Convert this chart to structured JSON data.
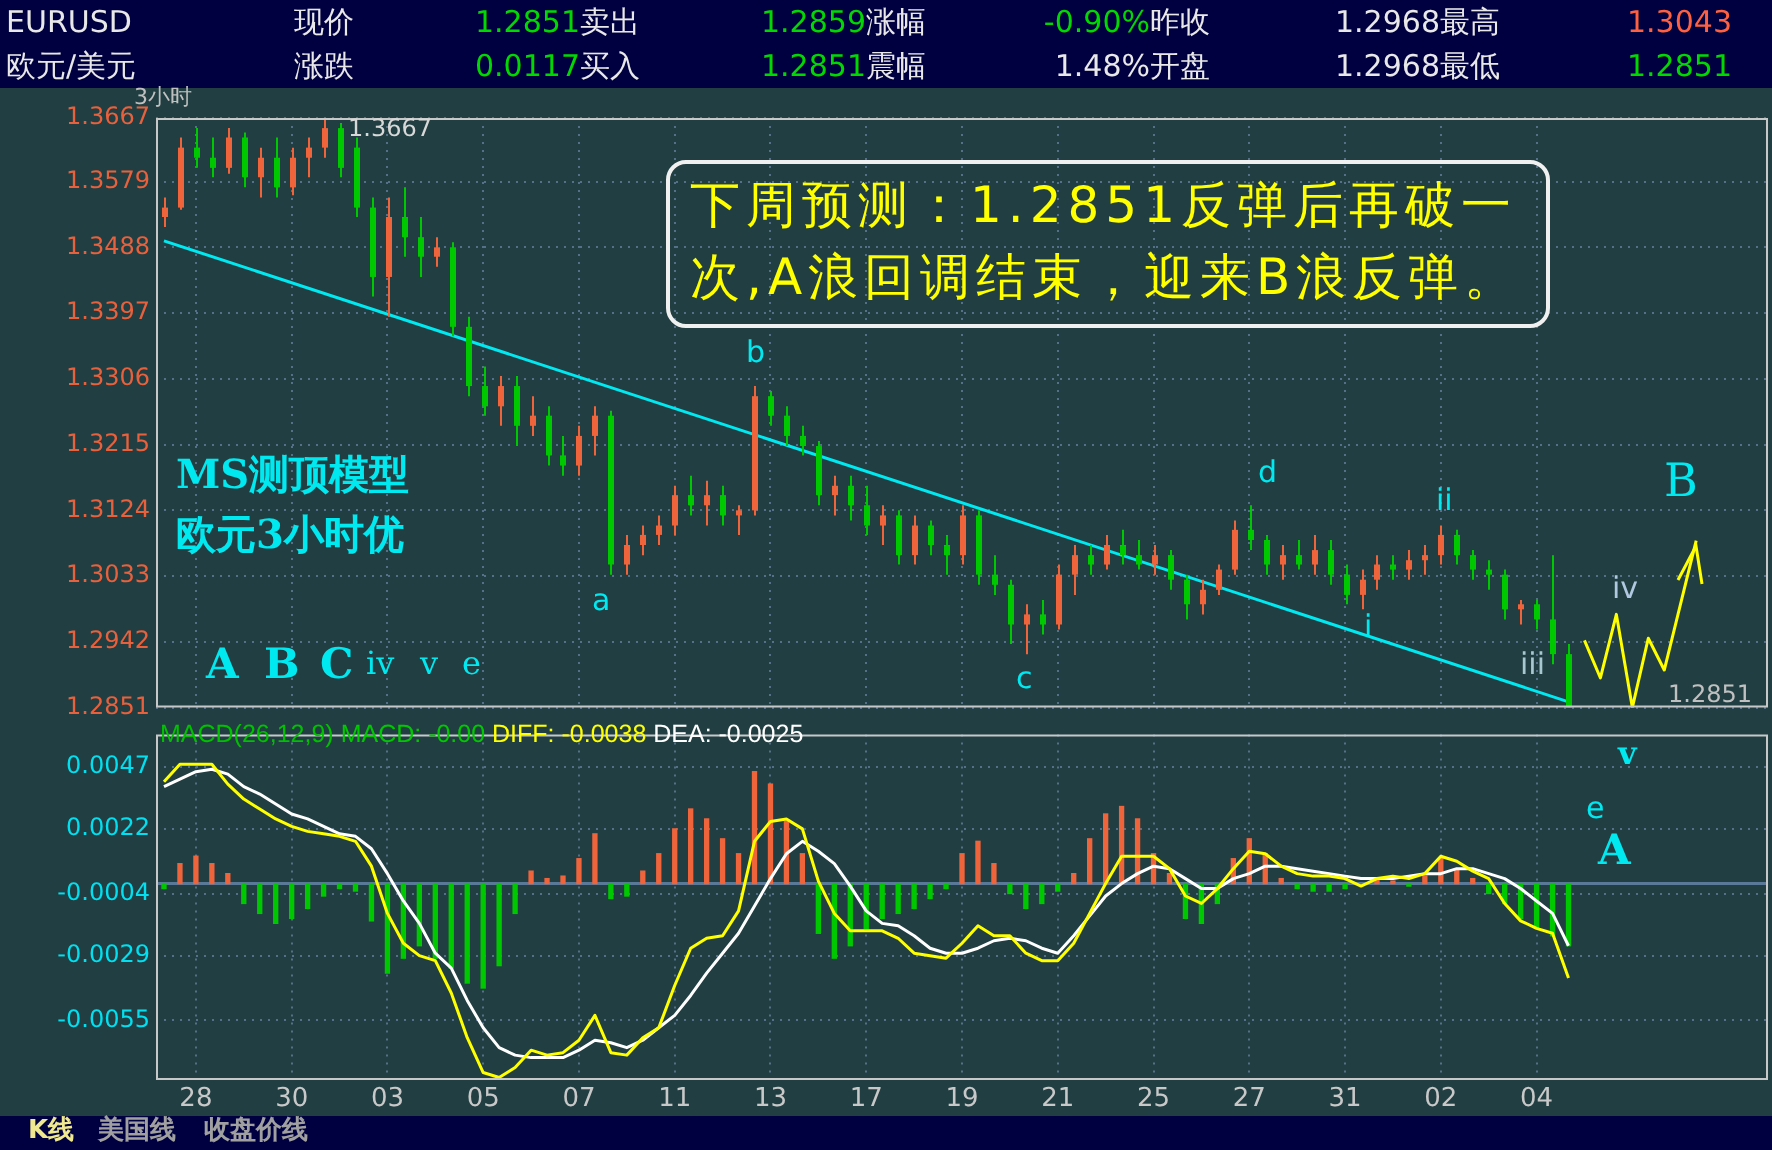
{
  "chart_data": [
    {
      "type": "other",
      "annotations": [
        "EURUSD",
        "现价",
        "1.2851",
        "卖出",
        "1.2859",
        "涨幅",
        "-0.90%",
        "昨收",
        "1.2968",
        "最高",
        "1.3043",
        "欧元/美元",
        "涨跌",
        "0.0117",
        "买入",
        "1.2851",
        "震幅",
        "1.48%",
        "开盘",
        "1.2968",
        "最低",
        "1.2851",
        "K线",
        "美国线",
        "收盘价线"
      ]
    },
    {
      "type": "candlestick",
      "categories": [
        null,
        null,
        "28",
        null,
        null,
        null,
        null,
        null,
        "30",
        null,
        null,
        null,
        null,
        null,
        "03",
        null,
        null,
        null,
        null,
        null,
        "05",
        null,
        null,
        null,
        null,
        null,
        "07",
        null,
        null,
        null,
        null,
        null,
        "11",
        null,
        null,
        null,
        null,
        null,
        "13",
        null,
        null,
        null,
        null,
        null,
        "17",
        null,
        null,
        null,
        null,
        null,
        "19",
        null,
        null,
        null,
        null,
        null,
        "21",
        null,
        null,
        null,
        null,
        null,
        "25",
        null,
        null,
        null,
        null,
        null,
        "27",
        null,
        null,
        null,
        null,
        null,
        "31",
        null,
        null,
        null,
        null,
        null,
        "02",
        null,
        null,
        null,
        null,
        null,
        "04",
        null,
        null,
        null,
        null,
        null,
        null,
        null,
        null,
        null,
        null,
        null,
        null,
        null,
        null
      ],
      "ohlc": [
        [
          1.353,
          1.3557,
          1.3516,
          1.3543
        ],
        [
          1.3543,
          1.364,
          1.354,
          1.3626
        ],
        [
          1.3626,
          1.3653,
          1.3598,
          1.3612
        ],
        [
          1.3612,
          1.364,
          1.3585,
          1.3598
        ],
        [
          1.3598,
          1.3653,
          1.359,
          1.364
        ],
        [
          1.364,
          1.3647,
          1.3571,
          1.3585
        ],
        [
          1.3585,
          1.3626,
          1.3557,
          1.3612
        ],
        [
          1.3612,
          1.364,
          1.3557,
          1.3571
        ],
        [
          1.3571,
          1.3626,
          1.356,
          1.3612
        ],
        [
          1.3612,
          1.364,
          1.3585,
          1.3626
        ],
        [
          1.3626,
          1.3667,
          1.3612,
          1.3653
        ],
        [
          1.3653,
          1.366,
          1.3585,
          1.3598
        ],
        [
          1.3626,
          1.364,
          1.353,
          1.3543
        ],
        [
          1.3543,
          1.3557,
          1.342,
          1.3447
        ],
        [
          1.3447,
          1.3557,
          1.3392,
          1.353
        ],
        [
          1.353,
          1.3571,
          1.3475,
          1.3502
        ],
        [
          1.3502,
          1.353,
          1.3447,
          1.3475
        ],
        [
          1.3475,
          1.3502,
          1.3461,
          1.3488
        ],
        [
          1.3488,
          1.3495,
          1.3365,
          1.3378
        ],
        [
          1.3378,
          1.3392,
          1.3282,
          1.3296
        ],
        [
          1.3296,
          1.3323,
          1.3255,
          1.3268
        ],
        [
          1.3268,
          1.331,
          1.3241,
          1.3296
        ],
        [
          1.3296,
          1.331,
          1.3213,
          1.3241
        ],
        [
          1.3241,
          1.3282,
          1.3227,
          1.3255
        ],
        [
          1.3255,
          1.3268,
          1.3186,
          1.32
        ],
        [
          1.32,
          1.3227,
          1.3172,
          1.3186
        ],
        [
          1.3186,
          1.3241,
          1.3172,
          1.3227
        ],
        [
          1.3227,
          1.3268,
          1.32,
          1.3255
        ],
        [
          1.3255,
          1.3262,
          1.3035,
          1.3049
        ],
        [
          1.3049,
          1.309,
          1.3035,
          1.3076
        ],
        [
          1.3076,
          1.3103,
          1.3062,
          1.309
        ],
        [
          1.309,
          1.3117,
          1.3076,
          1.3103
        ],
        [
          1.3103,
          1.3158,
          1.309,
          1.3145
        ],
        [
          1.3145,
          1.3172,
          1.3117,
          1.3131
        ],
        [
          1.3131,
          1.3165,
          1.3103,
          1.3145
        ],
        [
          1.3145,
          1.3158,
          1.3103,
          1.3117
        ],
        [
          1.3117,
          1.3131,
          1.309,
          1.3124
        ],
        [
          1.3124,
          1.3296,
          1.3117,
          1.3282
        ],
        [
          1.3282,
          1.3289,
          1.3241,
          1.3255
        ],
        [
          1.3255,
          1.3268,
          1.3213,
          1.3227
        ],
        [
          1.3227,
          1.3241,
          1.32,
          1.3213
        ],
        [
          1.3213,
          1.322,
          1.3131,
          1.3145
        ],
        [
          1.3145,
          1.3172,
          1.3117,
          1.3158
        ],
        [
          1.3158,
          1.3172,
          1.311,
          1.3131
        ],
        [
          1.3131,
          1.3158,
          1.309,
          1.3103
        ],
        [
          1.3103,
          1.3131,
          1.3076,
          1.3117
        ],
        [
          1.3117,
          1.3124,
          1.3049,
          1.3062
        ],
        [
          1.3062,
          1.3117,
          1.3049,
          1.3103
        ],
        [
          1.3103,
          1.311,
          1.3062,
          1.3076
        ],
        [
          1.3076,
          1.309,
          1.3035,
          1.3062
        ],
        [
          1.3062,
          1.3131,
          1.3049,
          1.3117
        ],
        [
          1.3117,
          1.3124,
          1.3021,
          1.3035
        ],
        [
          1.3035,
          1.3062,
          1.3007,
          1.3021
        ],
        [
          1.3021,
          1.3028,
          1.2939,
          1.2966
        ],
        [
          1.2966,
          1.2994,
          1.2925,
          1.298
        ],
        [
          1.298,
          1.3,
          1.2952,
          1.2966
        ],
        [
          1.2966,
          1.3049,
          1.2959,
          1.3035
        ],
        [
          1.3035,
          1.3076,
          1.3007,
          1.3062
        ],
        [
          1.3062,
          1.3076,
          1.3035,
          1.3049
        ],
        [
          1.3049,
          1.309,
          1.3042,
          1.3076
        ],
        [
          1.3076,
          1.3097,
          1.3049,
          1.3062
        ],
        [
          1.3062,
          1.3083,
          1.3042,
          1.3049
        ],
        [
          1.3049,
          1.3076,
          1.3035,
          1.3062
        ],
        [
          1.3062,
          1.3069,
          1.3014,
          1.3028
        ],
        [
          1.3028,
          1.3035,
          1.2973,
          1.2994
        ],
        [
          1.2994,
          1.3028,
          1.298,
          1.3014
        ],
        [
          1.3014,
          1.3049,
          1.3007,
          1.3042
        ],
        [
          1.3042,
          1.311,
          1.3035,
          1.3097
        ],
        [
          1.3097,
          1.3131,
          1.3069,
          1.3083
        ],
        [
          1.3083,
          1.309,
          1.3035,
          1.3049
        ],
        [
          1.3049,
          1.3076,
          1.3028,
          1.3062
        ],
        [
          1.3062,
          1.3083,
          1.3042,
          1.3049
        ],
        [
          1.3049,
          1.309,
          1.3035,
          1.3069
        ],
        [
          1.3069,
          1.3083,
          1.3021,
          1.3035
        ],
        [
          1.3035,
          1.3049,
          1.2994,
          1.3007
        ],
        [
          1.3007,
          1.3042,
          1.2987,
          1.3028
        ],
        [
          1.3028,
          1.3062,
          1.3014,
          1.3049
        ],
        [
          1.3049,
          1.3062,
          1.3028,
          1.3042
        ],
        [
          1.3042,
          1.3069,
          1.3028,
          1.3055
        ],
        [
          1.3055,
          1.3076,
          1.3035,
          1.3062
        ],
        [
          1.3062,
          1.3103,
          1.3049,
          1.309
        ],
        [
          1.309,
          1.3097,
          1.3049,
          1.3062
        ],
        [
          1.3062,
          1.3069,
          1.3028,
          1.3042
        ],
        [
          1.3042,
          1.3055,
          1.3014,
          1.3035
        ],
        [
          1.3035,
          1.3042,
          1.2973,
          1.2987
        ],
        [
          1.2987,
          1.3,
          1.2966,
          1.2994
        ],
        [
          1.2994,
          1.3,
          1.2959,
          1.2973
        ],
        [
          1.2973,
          1.3062,
          1.2911,
          1.2925
        ],
        [
          1.2925,
          1.2939,
          1.2851,
          1.2851
        ],
        null,
        null,
        null,
        null,
        null,
        null,
        null,
        null,
        null,
        null,
        null,
        null
      ],
      "colors": [
        "#f0643c",
        "#f0643c",
        "#00c800",
        "#00c800",
        "#f0643c",
        "#00c800",
        "#f0643c",
        "#00c800",
        "#f0643c",
        "#f0643c",
        "#f0643c",
        "#00c800",
        "#00c800",
        "#00c800",
        "#f0643c",
        "#00c800",
        "#00c800",
        "#f0643c",
        "#00c800",
        "#00c800",
        "#00c800",
        "#f0643c",
        "#00c800",
        "#f0643c",
        "#00c800",
        "#00c800",
        "#f0643c",
        "#f0643c",
        "#00c800",
        "#f0643c",
        "#f0643c",
        "#f0643c",
        "#f0643c",
        "#00c800",
        "#f0643c",
        "#00c800",
        "#f0643c",
        "#f0643c",
        "#00c800",
        "#00c800",
        "#00c800",
        "#00c800",
        "#f0643c",
        "#00c800",
        "#00c800",
        "#f0643c",
        "#00c800",
        "#f0643c",
        "#00c800",
        "#00c800",
        "#f0643c",
        "#00c800",
        "#00c800",
        "#00c800",
        "#f0643c",
        "#00c800",
        "#f0643c",
        "#f0643c",
        "#00c800",
        "#f0643c",
        "#00c800",
        "#00c800",
        "#f0643c",
        "#00c800",
        "#00c800",
        "#f0643c",
        "#f0643c",
        "#f0643c",
        "#00c800",
        "#00c800",
        "#f0643c",
        "#00c800",
        "#f0643c",
        "#00c800",
        "#00c800",
        "#f0643c",
        "#f0643c",
        "#00c800",
        "#f0643c",
        "#f0643c",
        "#f0643c",
        "#00c800",
        "#00c800",
        "#00c800",
        "#00c800",
        "#f0643c",
        "#00c800",
        "#00c800",
        "#00c800",
        null,
        null,
        null,
        null,
        null,
        null,
        null,
        null,
        null,
        null,
        null,
        null
      ],
      "series": [
        {
          "type": "line",
          "color": "#00e8f0",
          "values": [
            1.3497,
            null,
            null,
            null,
            null,
            null,
            null,
            null,
            null,
            null,
            null,
            null,
            null,
            null,
            null,
            null,
            null,
            null,
            null,
            null,
            null,
            null,
            null,
            null,
            null,
            null,
            null,
            null,
            null,
            null,
            null,
            null,
            null,
            null,
            null,
            null,
            null,
            null,
            null,
            null,
            null,
            null,
            null,
            null,
            null,
            null,
            null,
            null,
            null,
            null,
            null,
            null,
            null,
            null,
            null,
            null,
            null,
            null,
            null,
            null,
            null,
            null,
            null,
            null,
            null,
            null,
            null,
            null,
            null,
            null,
            null,
            null,
            null,
            null,
            null,
            null,
            null,
            null,
            null,
            null,
            null,
            null,
            null,
            null,
            null,
            null,
            null,
            null,
            1.2859,
            null,
            null,
            null,
            null,
            null,
            null,
            null,
            null,
            null,
            null,
            null,
            null
          ]
        },
        {
          "type": "line",
          "color": "#ffff00",
          "values": [
            null,
            null,
            null,
            null,
            null,
            null,
            null,
            null,
            null,
            null,
            null,
            null,
            null,
            null,
            null,
            null,
            null,
            null,
            null,
            null,
            null,
            null,
            null,
            null,
            null,
            null,
            null,
            null,
            null,
            null,
            null,
            null,
            null,
            null,
            null,
            null,
            null,
            null,
            null,
            null,
            null,
            null,
            null,
            null,
            null,
            null,
            null,
            null,
            null,
            null,
            null,
            null,
            null,
            null,
            null,
            null,
            null,
            null,
            null,
            null,
            null,
            null,
            null,
            null,
            null,
            null,
            null,
            null,
            null,
            null,
            null,
            null,
            null,
            null,
            null,
            null,
            null,
            null,
            null,
            null,
            null,
            null,
            null,
            null,
            null,
            null,
            null,
            null,
            null,
            1.2944,
            1.2892,
            1.298,
            1.2851,
            1.2947,
            1.2903,
            null,
            1.3082,
            null,
            null,
            null,
            null
          ]
        }
      ],
      "ylim": [
        1.2851,
        1.3667
      ],
      "yticks": [
        1.2851,
        1.2942,
        1.3033,
        1.3124,
        1.3215,
        1.3306,
        1.3397,
        1.3488,
        1.3579,
        1.3667
      ],
      "grid": true,
      "tick_labels": "y",
      "annotations": [
        "3小时",
        "1.3667",
        "下周预测：1.2851反弹后再破一次,A浪回调结束，迎来B浪反弹。",
        "MS测顶模型欧元3小时优",
        "A",
        "B",
        "C",
        "iv",
        "v",
        "e",
        "a",
        "b",
        "c",
        "d",
        "i",
        "ii",
        "iii",
        "iv",
        "v",
        "e",
        "A",
        "B",
        "1.2851"
      ]
    },
    {
      "type": "bar",
      "title": "MACD(26,12,9)",
      "categories": [
        null,
        null,
        "28",
        null,
        null,
        null,
        null,
        null,
        "30",
        null,
        null,
        null,
        null,
        null,
        "03",
        null,
        null,
        null,
        null,
        null,
        "05",
        null,
        null,
        null,
        null,
        null,
        "07",
        null,
        null,
        null,
        null,
        null,
        "11",
        null,
        null,
        null,
        null,
        null,
        "13",
        null,
        null,
        null,
        null,
        null,
        "17",
        null,
        null,
        null,
        null,
        null,
        "19",
        null,
        null,
        null,
        null,
        null,
        "21",
        null,
        null,
        null,
        null,
        null,
        "25",
        null,
        null,
        null,
        null,
        null,
        "27",
        null,
        null,
        null,
        null,
        null,
        "31",
        null,
        null,
        null,
        null,
        null,
        "02",
        null,
        null,
        null,
        null,
        null,
        "04",
        null,
        null,
        null,
        null,
        null,
        null,
        null,
        null,
        null,
        null,
        null,
        null,
        null,
        null
      ],
      "series": [
        {
          "name": "MACD: -0.00",
          "type": "bar",
          "color": "#00c800",
          "values": [
            -0.0002,
            0.0008,
            0.0011,
            0.0008,
            0.0004,
            -0.0008,
            -0.0012,
            -0.0016,
            -0.0014,
            -0.001,
            -0.0005,
            -0.0002,
            -0.0003,
            -0.0015,
            -0.0036,
            -0.003,
            -0.0025,
            -0.003,
            -0.0034,
            -0.004,
            -0.0042,
            -0.0033,
            -0.0012,
            0.0005,
            0.0002,
            0.0003,
            0.001,
            0.002,
            -0.0006,
            -0.0005,
            0.0005,
            0.0012,
            0.0022,
            0.003,
            0.0026,
            0.0018,
            0.0012,
            0.0045,
            0.004,
            0.0025,
            0.0012,
            -0.002,
            -0.003,
            -0.0025,
            -0.0018,
            -0.0014,
            -0.0012,
            -0.001,
            -0.0006,
            -0.0002,
            0.0012,
            0.0017,
            0.0008,
            -0.0004,
            -0.001,
            -0.0008,
            -0.0003,
            0.0004,
            0.0018,
            0.0028,
            0.0031,
            0.0026,
            0.0012,
            0.0004,
            -0.0014,
            -0.0016,
            -0.0008,
            0.001,
            0.0018,
            0.0012,
            0.0002,
            -0.0002,
            -0.0003,
            -0.0003,
            -0.0002,
            null,
            0.0002,
            0.0001,
            -0.0001,
            0.0003,
            0.001,
            0.0006,
            0.0002,
            -0.0004,
            -0.0008,
            -0.0014,
            -0.0018,
            -0.0021,
            -0.0025,
            null,
            null,
            null,
            null,
            null,
            null,
            null,
            null,
            null,
            null,
            null,
            null
          ],
          "colors": [
            "#00c800",
            "#f0643c",
            "#f0643c",
            "#f0643c",
            "#f0643c",
            "#00c800",
            "#00c800",
            "#00c800",
            "#00c800",
            "#00c800",
            "#00c800",
            "#00c800",
            "#00c800",
            "#00c800",
            "#00c800",
            "#00c800",
            "#00c800",
            "#00c800",
            "#00c800",
            "#00c800",
            "#00c800",
            "#00c800",
            "#00c800",
            "#f0643c",
            "#f0643c",
            "#f0643c",
            "#f0643c",
            "#f0643c",
            "#00c800",
            "#00c800",
            "#f0643c",
            "#f0643c",
            "#f0643c",
            "#f0643c",
            "#f0643c",
            "#f0643c",
            "#f0643c",
            "#f0643c",
            "#f0643c",
            "#f0643c",
            "#f0643c",
            "#00c800",
            "#00c800",
            "#00c800",
            "#00c800",
            "#00c800",
            "#00c800",
            "#00c800",
            "#00c800",
            "#00c800",
            "#f0643c",
            "#f0643c",
            "#f0643c",
            "#00c800",
            "#00c800",
            "#00c800",
            "#00c800",
            "#f0643c",
            "#f0643c",
            "#f0643c",
            "#f0643c",
            "#f0643c",
            "#f0643c",
            "#f0643c",
            "#00c800",
            "#00c800",
            "#00c800",
            "#f0643c",
            "#f0643c",
            "#f0643c",
            "#f0643c",
            "#00c800",
            "#00c800",
            "#00c800",
            "#00c800",
            "#00c800",
            "#f0643c",
            "#f0643c",
            "#00c800",
            "#f0643c",
            "#f0643c",
            "#f0643c",
            "#f0643c",
            "#00c800",
            "#00c800",
            "#00c800",
            "#00c800",
            "#00c800",
            "#00c800",
            null,
            null,
            null,
            null,
            null,
            null,
            null,
            null,
            null,
            null,
            null,
            null
          ]
        },
        {
          "name": "DIFF: -0.0038",
          "type": "line",
          "color": "#ffff00",
          "values": [
            0.0041,
            0.0048,
            0.0048,
            0.0048,
            0.004,
            0.0034,
            0.003,
            0.0026,
            0.0023,
            0.0021,
            0.002,
            0.0019,
            0.0017,
            0.0007,
            -0.0012,
            -0.0024,
            -0.0029,
            -0.0031,
            -0.0044,
            -0.0062,
            -0.0076,
            -0.0078,
            -0.0074,
            -0.0067,
            -0.0069,
            -0.0068,
            -0.0063,
            -0.0053,
            -0.0068,
            -0.0069,
            -0.0062,
            -0.0058,
            -0.0041,
            -0.0026,
            -0.0022,
            -0.0021,
            -0.0011,
            0.0017,
            0.0025,
            0.0026,
            0.0022,
            0.0001,
            -0.0012,
            -0.0019,
            -0.0019,
            -0.0019,
            -0.0022,
            -0.0028,
            -0.0029,
            -0.003,
            -0.0024,
            -0.0017,
            -0.0021,
            -0.0021,
            -0.0028,
            -0.0031,
            -0.0031,
            -0.0024,
            -0.0012,
            0,
            0.0011,
            0.0011,
            0.0011,
            0.0006,
            -0.0005,
            -0.0008,
            -0.0002,
            0.0006,
            0.0013,
            0.0012,
            0.0007,
            0.0004,
            0.0003,
            0.0003,
            0.0002,
            -0.0001,
            0.0002,
            0.0003,
            0.0002,
            0.0004,
            0.0011,
            0.0009,
            0.0005,
            0.0002,
            -0.0008,
            -0.0015,
            -0.0018,
            -0.002,
            -0.0038,
            null,
            null,
            null,
            null,
            null,
            null,
            null,
            null,
            null,
            null,
            null,
            null
          ]
        },
        {
          "name": "DEA: -0.0025",
          "type": "line",
          "color": "#ffffff",
          "values": [
            0.0039,
            0.0042,
            0.0045,
            0.0046,
            0.0044,
            0.0039,
            0.0036,
            0.0032,
            0.0028,
            0.0026,
            0.0023,
            0.002,
            0.0019,
            0.0014,
            0.0004,
            -0.0007,
            -0.0016,
            -0.0028,
            -0.0034,
            -0.0047,
            -0.0058,
            -0.0066,
            -0.0069,
            -0.007,
            -0.007,
            -0.007,
            -0.0067,
            -0.0063,
            -0.0064,
            -0.0066,
            -0.0063,
            -0.0058,
            -0.0053,
            -0.0045,
            -0.0036,
            -0.0028,
            -0.002,
            -0.0009,
            0.0002,
            0.0012,
            0.0017,
            0.0013,
            0.0008,
            -0.0001,
            -0.0011,
            -0.0016,
            -0.0017,
            -0.0021,
            -0.0026,
            -0.0028,
            -0.0028,
            -0.0026,
            -0.0023,
            -0.0022,
            -0.0023,
            -0.0026,
            -0.0028,
            -0.0021,
            -0.0013,
            -0.0005,
            0,
            0.0004,
            0.0007,
            0.0006,
            0.0002,
            -0.0002,
            -0.0002,
            0.0002,
            0.0004,
            0.0007,
            0.0007,
            0.0006,
            0.0005,
            0.0004,
            0.0003,
            0.0002,
            0.0002,
            0.0002,
            0.0003,
            0.0004,
            0.0004,
            0.0006,
            0.0006,
            0.0004,
            0.0002,
            -0.0002,
            -0.0007,
            -0.0012,
            -0.0025,
            null,
            null,
            null,
            null,
            null,
            null,
            null,
            null,
            null,
            null,
            null,
            null
          ]
        }
      ],
      "ylim": [
        -0.0079,
        0.006
      ],
      "yticks": [
        -0.0055,
        -0.0029,
        -0.0004,
        0.0022,
        0.0047
      ],
      "grid": true,
      "legend": "top left",
      "ref_lines": [
        {
          "axis": "y",
          "value": 0,
          "color": "#5a7898"
        }
      ]
    }
  ]
}
